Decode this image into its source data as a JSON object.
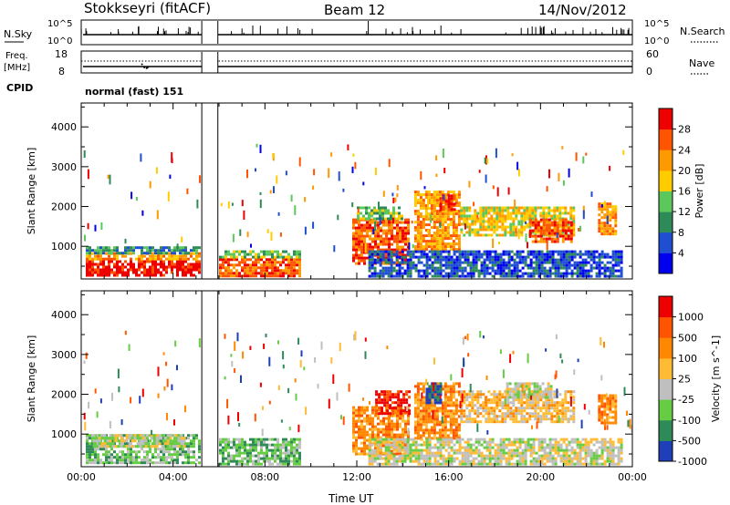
{
  "header": {
    "station": "Stokkseyri (fitACF)",
    "beam": "Beam 12",
    "date": "14/Nov/2012"
  },
  "top_panels": {
    "nsky_label": "N.Sky",
    "nsky_ticks": [
      "10^5",
      "10^0"
    ],
    "nsearch_label": "N.Search",
    "nsearch_ticks": [
      "10^5",
      "10^0"
    ],
    "freq_label": "Freq.",
    "freq_unit": "[MHz]",
    "freq_ticks": [
      "18",
      "8"
    ],
    "nave_label": "Nave",
    "nave_ticks": [
      "60",
      "0"
    ],
    "cpid_label": "CPID",
    "cpid_value": "normal (fast) 151"
  },
  "chart_data": [
    {
      "type": "heatmap",
      "panel": "power",
      "ylabel": "Slant Range [km]",
      "xlabel": "",
      "y_ticks": [
        "1000",
        "2000",
        "3000",
        "4000"
      ],
      "ylim": [
        180,
        4600
      ],
      "x_range_hours": [
        0,
        24
      ],
      "colorbar_label": "Power [dB]",
      "colorbar_ticks": [
        "28",
        "24",
        "20",
        "16",
        "12",
        "8",
        "4"
      ],
      "colorbar_colors": [
        "#0000ee",
        "#1f4fd0",
        "#2e8b57",
        "#5cc85c",
        "#ffcc00",
        "#ff9900",
        "#ff5500",
        "#ee0000"
      ],
      "data_gap_hours": [
        [
          5.25,
          5.95
        ]
      ],
      "regions": [
        {
          "t": [
            0.2,
            5.2
          ],
          "r": [
            250,
            650
          ],
          "level": 7
        },
        {
          "t": [
            0.2,
            5.2
          ],
          "r": [
            650,
            850
          ],
          "level": 5
        },
        {
          "t": [
            0.2,
            5.2
          ],
          "r": [
            850,
            1000
          ],
          "level": 2
        },
        {
          "t": [
            6.0,
            9.5
          ],
          "r": [
            250,
            700
          ],
          "level": 6
        },
        {
          "t": [
            6.0,
            9.5
          ],
          "r": [
            700,
            900
          ],
          "level": 3
        },
        {
          "t": [
            11.8,
            14.3
          ],
          "r": [
            600,
            1700
          ],
          "level": 6
        },
        {
          "t": [
            12.0,
            14.0
          ],
          "r": [
            1700,
            2000
          ],
          "level": 3
        },
        {
          "t": [
            14.5,
            16.5
          ],
          "r": [
            900,
            2400
          ],
          "level": 5
        },
        {
          "t": [
            15.6,
            16.3
          ],
          "r": [
            1900,
            2300
          ],
          "level": 7
        },
        {
          "t": [
            16.5,
            21.5
          ],
          "r": [
            1300,
            2000
          ],
          "level": 4
        },
        {
          "t": [
            19.5,
            21.3
          ],
          "r": [
            1100,
            1700
          ],
          "level": 6
        },
        {
          "t": [
            22.5,
            23.3
          ],
          "r": [
            1300,
            2100
          ],
          "level": 5
        },
        {
          "t": [
            12.5,
            23.5
          ],
          "r": [
            250,
            900
          ],
          "level": 1
        }
      ]
    },
    {
      "type": "heatmap",
      "panel": "velocity",
      "ylabel": "Slant Range [km]",
      "xlabel": "Time UT",
      "x_ticks": [
        "00:00",
        "04:00",
        "08:00",
        "12:00",
        "16:00",
        "20:00",
        "00:00"
      ],
      "y_ticks": [
        "1000",
        "2000",
        "3000",
        "4000"
      ],
      "ylim": [
        180,
        4600
      ],
      "x_range_hours": [
        0,
        24
      ],
      "colorbar_label": "Velocity [m s^-1]",
      "colorbar_ticks": [
        "1000",
        "500",
        "100",
        "25",
        "-25",
        "-100",
        "-500",
        "-1000"
      ],
      "colorbar_colors": [
        "#1f3fb8",
        "#2e8b57",
        "#66cc44",
        "#bfbfbf",
        "#ffbb33",
        "#ff8800",
        "#ff5500",
        "#ee0000"
      ],
      "data_gap_hours": [
        [
          5.25,
          5.95
        ]
      ],
      "regions": [
        {
          "t": [
            0.2,
            5.2
          ],
          "r": [
            250,
            1000
          ],
          "level": 2
        },
        {
          "t": [
            0.5,
            4.5
          ],
          "r": [
            700,
            1000
          ],
          "level": 3
        },
        {
          "t": [
            6.0,
            9.5
          ],
          "r": [
            250,
            900
          ],
          "level": 2
        },
        {
          "t": [
            11.8,
            14.3
          ],
          "r": [
            500,
            1700
          ],
          "level": 5
        },
        {
          "t": [
            12.8,
            14.3
          ],
          "r": [
            1500,
            2100
          ],
          "level": 7
        },
        {
          "t": [
            14.5,
            16.5
          ],
          "r": [
            900,
            2300
          ],
          "level": 5
        },
        {
          "t": [
            15.0,
            15.6
          ],
          "r": [
            1800,
            2300
          ],
          "level": 0
        },
        {
          "t": [
            16.5,
            21.5
          ],
          "r": [
            1300,
            2100
          ],
          "level": 4
        },
        {
          "t": [
            18.5,
            20.5
          ],
          "r": [
            1900,
            2300
          ],
          "level": 3
        },
        {
          "t": [
            22.5,
            23.3
          ],
          "r": [
            1300,
            2000
          ],
          "level": 5
        },
        {
          "t": [
            12.5,
            23.5
          ],
          "r": [
            250,
            900
          ],
          "level": 3
        }
      ]
    }
  ]
}
